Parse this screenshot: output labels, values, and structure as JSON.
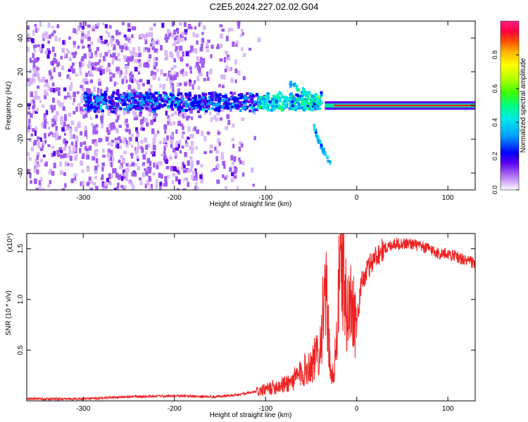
{
  "figure_title": "C2E5.2024.227.02.02.G04",
  "chart_data": [
    {
      "type": "heatmap",
      "title": "",
      "xlabel": "Height of straight line (km)",
      "ylabel": "Frequency (Hz)",
      "xlim": [
        -362,
        130
      ],
      "ylim": [
        -50,
        50
      ],
      "xticks": [
        -300,
        -200,
        -100,
        0,
        100
      ],
      "yticks": [
        -40,
        -20,
        0,
        20,
        40
      ],
      "colorbar": {
        "label": "Normalized spectral amplitude",
        "range": [
          0,
          1
        ],
        "ticks": [
          "0.0",
          "0.2",
          "0.4",
          "0.6",
          "0.8"
        ],
        "colors": [
          "#ffffff",
          "#d8b8f8",
          "#a05af0",
          "#5a00f0",
          "#0000ff",
          "#00a0ff",
          "#00e8e8",
          "#00ff80",
          "#40ff00",
          "#b8ff00",
          "#ffff00",
          "#ffb000",
          "#ff5000",
          "#ff0040",
          "#ff2080"
        ]
      },
      "features": [
        {
          "name": "noise_region",
          "x": [
            -362,
            -125
          ],
          "y": [
            -50,
            50
          ],
          "level": 0.15
        },
        {
          "name": "main_band",
          "x": [
            -300,
            -40
          ],
          "y_center": 3,
          "y_halfwidth": 6,
          "level": 0.35
        },
        {
          "name": "carrier_line",
          "x": [
            -35,
            130
          ],
          "y": 0,
          "level": 0.9
        },
        {
          "name": "upper_branch",
          "points": [
            [
              -75,
              14
            ],
            [
              -55,
              8
            ],
            [
              -40,
              2
            ]
          ],
          "level": 0.35
        },
        {
          "name": "lower_branch",
          "points": [
            [
              -48,
              -12
            ],
            [
              -43,
              -20
            ],
            [
              -30,
              -34
            ]
          ],
          "level": 0.3
        }
      ]
    },
    {
      "type": "line",
      "title": "",
      "xlabel": "Height of straight line (km)",
      "ylabel": "SNR (10 * v/v)",
      "y_multiplier": "(x10⁴)",
      "xlim": [
        -362,
        130
      ],
      "ylim": [
        0,
        1.65
      ],
      "xticks": [
        -300,
        -200,
        -100,
        0,
        100
      ],
      "yticks": [
        0.5,
        1.0,
        1.5
      ],
      "ytick_labels": [
        "0.5",
        "1.0",
        "1.5"
      ],
      "color": "#ee2222",
      "x": [
        -362,
        -300,
        -250,
        -200,
        -160,
        -130,
        -110,
        -100,
        -90,
        -80,
        -70,
        -60,
        -50,
        -45,
        -40,
        -37,
        -34,
        -31,
        -28,
        -25,
        -22,
        -19,
        -16,
        -13,
        -10,
        -7,
        -4,
        0,
        5,
        10,
        15,
        20,
        25,
        30,
        35,
        40,
        50,
        60,
        70,
        80,
        90,
        100,
        110,
        120,
        130
      ],
      "y": [
        0.02,
        0.02,
        0.04,
        0.05,
        0.04,
        0.06,
        0.09,
        0.11,
        0.14,
        0.16,
        0.2,
        0.28,
        0.36,
        0.42,
        0.55,
        0.85,
        1.05,
        0.7,
        0.2,
        0.3,
        0.6,
        1.2,
        1.5,
        1.0,
        0.85,
        0.95,
        0.95,
        0.75,
        1.15,
        1.25,
        1.35,
        1.42,
        1.46,
        1.5,
        1.52,
        1.55,
        1.55,
        1.55,
        1.52,
        1.5,
        1.45,
        1.45,
        1.42,
        1.38,
        1.36
      ]
    }
  ]
}
